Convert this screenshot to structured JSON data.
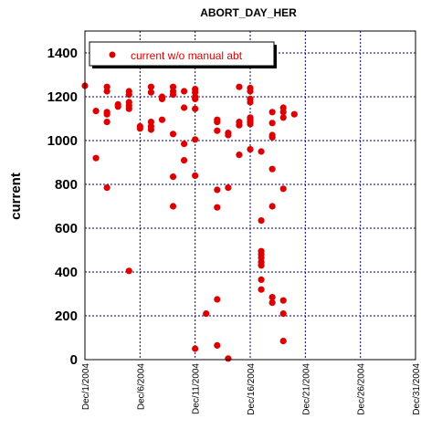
{
  "chart_data": {
    "type": "scatter",
    "title": "ABORT_DAY_HER",
    "xlabel": "",
    "ylabel": "current",
    "xlim": [
      "2004-12-01",
      "2004-12-31"
    ],
    "ylim": [
      0,
      1500
    ],
    "x_ticks": [
      "Dec/1/2004",
      "Dec/6/2004",
      "Dec/11/2004",
      "Dec/16/2004",
      "Dec/21/2004",
      "Dec/26/2004",
      "Dec/31/2004"
    ],
    "y_ticks": [
      "0",
      "200",
      "400",
      "600",
      "800",
      "1000",
      "1200",
      "1400"
    ],
    "grid": true,
    "legend_position": "top-left",
    "colors": {
      "series": "#dd0000",
      "grid": "#000080",
      "axes": "#000000"
    },
    "series": [
      {
        "name": "current w/o manual abt",
        "points": [
          [
            "2004-12-01 00:00",
            1250
          ],
          [
            "2004-12-02 00:00",
            1135
          ],
          [
            "2004-12-02 00:00",
            920
          ],
          [
            "2004-12-03 00:00",
            1245
          ],
          [
            "2004-12-03 00:00",
            1225
          ],
          [
            "2004-12-03 00:00",
            1130
          ],
          [
            "2004-12-03 00:00",
            1120
          ],
          [
            "2004-12-03 00:00",
            1085
          ],
          [
            "2004-12-03 00:00",
            785
          ],
          [
            "2004-12-04 00:00",
            1165
          ],
          [
            "2004-12-04 00:00",
            1155
          ],
          [
            "2004-12-05 00:00",
            1225
          ],
          [
            "2004-12-05 00:00",
            1210
          ],
          [
            "2004-12-05 00:00",
            1175
          ],
          [
            "2004-12-05 00:00",
            1160
          ],
          [
            "2004-12-05 00:00",
            1145
          ],
          [
            "2004-12-05 00:00",
            405
          ],
          [
            "2004-12-06 00:00",
            1065
          ],
          [
            "2004-12-06 00:00",
            1055
          ],
          [
            "2004-12-07 00:00",
            1245
          ],
          [
            "2004-12-07 00:00",
            1220
          ],
          [
            "2004-12-07 00:00",
            1085
          ],
          [
            "2004-12-07 00:00",
            1065
          ],
          [
            "2004-12-07 00:00",
            1050
          ],
          [
            "2004-12-08 00:00",
            1200
          ],
          [
            "2004-12-08 00:00",
            1190
          ],
          [
            "2004-12-08 00:00",
            1095
          ],
          [
            "2004-12-09 00:00",
            1245
          ],
          [
            "2004-12-09 00:00",
            1225
          ],
          [
            "2004-12-09 00:00",
            1210
          ],
          [
            "2004-12-09 00:00",
            1030
          ],
          [
            "2004-12-09 00:00",
            835
          ],
          [
            "2004-12-09 00:00",
            700
          ],
          [
            "2004-12-10 00:00",
            1225
          ],
          [
            "2004-12-10 00:00",
            1150
          ],
          [
            "2004-12-10 00:00",
            985
          ],
          [
            "2004-12-10 00:00",
            910
          ],
          [
            "2004-12-11 00:00",
            1235
          ],
          [
            "2004-12-11 00:00",
            1220
          ],
          [
            "2004-12-11 00:00",
            1200
          ],
          [
            "2004-12-11 00:00",
            1190
          ],
          [
            "2004-12-11 00:00",
            1145
          ],
          [
            "2004-12-11 00:00",
            1005
          ],
          [
            "2004-12-11 00:00",
            840
          ],
          [
            "2004-12-11 00:00",
            50
          ],
          [
            "2004-12-12 00:00",
            210
          ],
          [
            "2004-12-13 00:00",
            1095
          ],
          [
            "2004-12-13 00:00",
            1085
          ],
          [
            "2004-12-13 00:00",
            1045
          ],
          [
            "2004-12-13 00:00",
            775
          ],
          [
            "2004-12-13 00:00",
            695
          ],
          [
            "2004-12-13 00:00",
            275
          ],
          [
            "2004-12-13 00:00",
            65
          ],
          [
            "2004-12-14 00:00",
            1035
          ],
          [
            "2004-12-14 00:00",
            1025
          ],
          [
            "2004-12-14 00:00",
            785
          ],
          [
            "2004-12-14 00:00",
            5
          ],
          [
            "2004-12-15 00:00",
            1245
          ],
          [
            "2004-12-15 00:00",
            1085
          ],
          [
            "2004-12-15 00:00",
            1070
          ],
          [
            "2004-12-15 00:00",
            935
          ],
          [
            "2004-12-16 00:00",
            1240
          ],
          [
            "2004-12-16 00:00",
            1225
          ],
          [
            "2004-12-16 00:00",
            1190
          ],
          [
            "2004-12-16 00:00",
            1175
          ],
          [
            "2004-12-16 00:00",
            1105
          ],
          [
            "2004-12-16 00:00",
            1095
          ],
          [
            "2004-12-16 00:00",
            1085
          ],
          [
            "2004-12-16 00:00",
            1075
          ],
          [
            "2004-12-16 00:00",
            960
          ],
          [
            "2004-12-17 00:00",
            950
          ],
          [
            "2004-12-17 00:00",
            635
          ],
          [
            "2004-12-17 00:00",
            495
          ],
          [
            "2004-12-17 00:00",
            480
          ],
          [
            "2004-12-17 00:00",
            465
          ],
          [
            "2004-12-17 00:00",
            445
          ],
          [
            "2004-12-17 00:00",
            430
          ],
          [
            "2004-12-17 00:00",
            365
          ],
          [
            "2004-12-17 00:00",
            320
          ],
          [
            "2004-12-18 00:00",
            1130
          ],
          [
            "2004-12-18 00:00",
            1080
          ],
          [
            "2004-12-18 00:00",
            1025
          ],
          [
            "2004-12-18 00:00",
            1015
          ],
          [
            "2004-12-18 00:00",
            870
          ],
          [
            "2004-12-18 00:00",
            700
          ],
          [
            "2004-12-18 00:00",
            285
          ],
          [
            "2004-12-18 00:00",
            260
          ],
          [
            "2004-12-19 00:00",
            1150
          ],
          [
            "2004-12-19 00:00",
            1130
          ],
          [
            "2004-12-19 00:00",
            1105
          ],
          [
            "2004-12-19 00:00",
            780
          ],
          [
            "2004-12-19 00:00",
            270
          ],
          [
            "2004-12-19 00:00",
            210
          ],
          [
            "2004-12-19 00:00",
            85
          ],
          [
            "2004-12-20 00:00",
            1120
          ]
        ]
      }
    ]
  }
}
